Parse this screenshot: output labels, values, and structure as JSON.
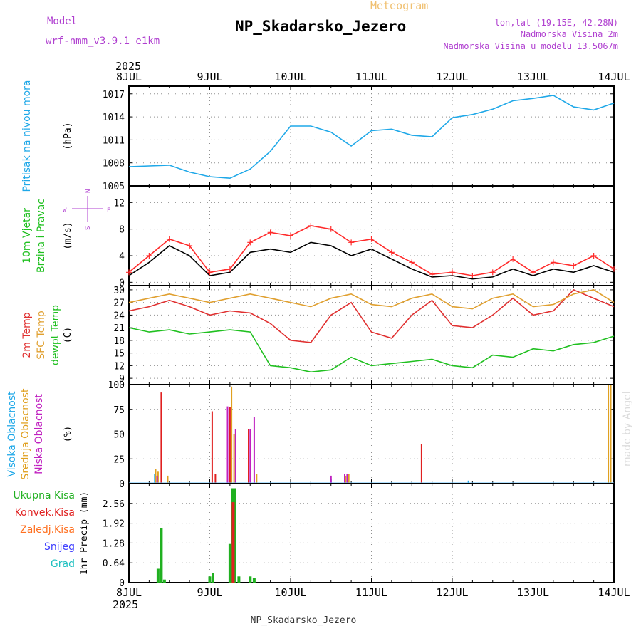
{
  "header": {
    "model_label": "Model",
    "model_name": "wrf-nmm_v3.9.1  e1km",
    "meteogram_label": "Meteogram",
    "station": "NP_Skadarsko_Jezero",
    "lonlat": "lon,lat (19.15E, 42.28N)",
    "elevation": "Nadmorska Visina 2m",
    "model_elevation": "Nadmorska Visina u modelu 13.5067m",
    "footer_station": "NP_Skadarsko_Jezero",
    "credit": "made by Angel"
  },
  "colors": {
    "pressure": "#1fa8e8",
    "wind_speed": "#000000",
    "gust": "#ff2a2a",
    "temp2m": "#e03030",
    "sfc_temp": "#e0a030",
    "dewpoint": "#20c020",
    "cloud_high": "#1fa8e8",
    "cloud_mid": "#e0a020",
    "cloud_low": "#c020c0",
    "cloud_total": "#e02020",
    "rain_total": "#20b020",
    "rain_conv": "#e02020",
    "rain_frozen": "#ff7020",
    "snow": "#4040ff",
    "graupel": "#20c0c0",
    "label_purple": "#b040d0",
    "label_orange": "#f0c070",
    "grid": "#909090"
  },
  "chart_data": [
    {
      "type": "line",
      "panel": "pressure",
      "ylabel_side": "Pritisak na nivou mora",
      "ylabel": "(hPa)",
      "year": "2025",
      "x_ticks": [
        "8JUL",
        "9JUL",
        "10JUL",
        "11JUL",
        "12JUL",
        "13JUL",
        "14JUL"
      ],
      "ylim": [
        1005,
        1018
      ],
      "yticks": [
        1005,
        1008,
        1011,
        1014,
        1017
      ],
      "x": [
        0,
        0.25,
        0.5,
        0.75,
        1.0,
        1.25,
        1.5,
        1.75,
        2.0,
        2.25,
        2.5,
        2.75,
        3.0,
        3.25,
        3.5,
        3.75,
        4.0,
        4.25,
        4.5,
        4.75,
        5.0,
        5.25,
        5.5,
        5.75,
        6.0
      ],
      "series": [
        {
          "values": [
            1007.5,
            1007.6,
            1007.7,
            1006.8,
            1006.2,
            1006.0,
            1007.2,
            1009.5,
            1012.8,
            1012.8,
            1012.0,
            1010.2,
            1012.2,
            1012.4,
            1011.6,
            1011.4,
            1013.9,
            1014.3,
            1015.0,
            1016.1,
            1016.4,
            1016.8,
            1015.3,
            1014.9,
            1015.8
          ]
        }
      ],
      "grid": true
    },
    {
      "type": "line",
      "panel": "wind",
      "ylabel_side": [
        "10m Vjetar",
        "Brzina i Pravac"
      ],
      "ylabel": "(m/s)",
      "compass": {
        "n": "N",
        "s": "S",
        "e": "E",
        "w": "W"
      },
      "ylim": [
        -0.5,
        14.5
      ],
      "yticks": [
        0,
        4,
        8,
        12
      ],
      "x": [
        0,
        0.25,
        0.5,
        0.75,
        1.0,
        1.25,
        1.5,
        1.75,
        2.0,
        2.25,
        2.5,
        2.75,
        3.0,
        3.25,
        3.5,
        3.75,
        4.0,
        4.25,
        4.5,
        4.75,
        5.0,
        5.25,
        5.5,
        5.75,
        6.0
      ],
      "series": [
        {
          "name": "speed",
          "values": [
            1.0,
            3.0,
            5.5,
            4.0,
            1.0,
            1.5,
            4.5,
            5.0,
            4.5,
            6.0,
            5.5,
            4.0,
            5.0,
            3.5,
            2.0,
            0.8,
            1.0,
            0.5,
            0.8,
            2.0,
            1.0,
            2.0,
            1.5,
            2.5,
            1.5
          ]
        },
        {
          "name": "gust",
          "values": [
            1.5,
            4.0,
            6.5,
            5.5,
            1.5,
            2.0,
            6.0,
            7.5,
            7.0,
            8.5,
            8.0,
            6.0,
            6.5,
            4.5,
            3.0,
            1.2,
            1.5,
            1.0,
            1.5,
            3.5,
            1.5,
            3.0,
            2.5,
            4.0,
            2.0
          ]
        }
      ],
      "grid": true
    },
    {
      "type": "line",
      "panel": "temperature",
      "ylabel_side": [
        "2m Temp",
        "SFC Temp",
        "dewpt Temp"
      ],
      "ylabel": "(C)",
      "ylim": [
        7.5,
        31
      ],
      "yticks": [
        9,
        12,
        15,
        18,
        21,
        24,
        27,
        30
      ],
      "x": [
        0,
        0.25,
        0.5,
        0.75,
        1.0,
        1.25,
        1.5,
        1.75,
        2.0,
        2.25,
        2.5,
        2.75,
        3.0,
        3.25,
        3.5,
        3.75,
        4.0,
        4.25,
        4.5,
        4.75,
        5.0,
        5.25,
        5.5,
        5.75,
        6.0
      ],
      "series": [
        {
          "name": "2m Temp",
          "values": [
            25,
            26,
            27.5,
            26,
            24,
            25,
            24.5,
            22,
            18,
            17.5,
            24,
            27,
            20,
            18.5,
            24,
            27.5,
            21.5,
            21,
            24,
            28,
            24,
            25,
            30,
            28,
            26
          ]
        },
        {
          "name": "SFC Temp",
          "values": [
            27,
            28,
            29,
            28,
            27,
            28,
            29,
            28,
            27,
            26,
            28,
            29,
            26.5,
            26,
            28,
            29,
            26,
            25.5,
            28,
            29,
            26,
            26.5,
            29,
            30,
            27
          ]
        },
        {
          "name": "dewpt Temp",
          "values": [
            21,
            20,
            20.5,
            19.5,
            20,
            20.5,
            20,
            12,
            11.5,
            10.5,
            11,
            14,
            12,
            12.5,
            13,
            13.5,
            12,
            11.5,
            14.5,
            14,
            16,
            15.5,
            17,
            17.5,
            19
          ]
        }
      ],
      "grid": true
    },
    {
      "type": "bar",
      "panel": "clouds",
      "ylabel_side": [
        "Visoka Oblacnost",
        "Srednja Oblacnost",
        "Niska Oblacnost"
      ],
      "ylabel": "(%)",
      "ylim": [
        0,
        100
      ],
      "yticks": [
        0,
        25,
        50,
        75,
        100
      ],
      "series": [
        {
          "name": "high",
          "bars": [
            [
              0.32,
              10
            ],
            [
              2.5,
              5
            ],
            [
              4.2,
              3
            ]
          ]
        },
        {
          "name": "mid",
          "bars": [
            [
              0.33,
              15
            ],
            [
              0.36,
              12
            ],
            [
              0.48,
              8
            ],
            [
              1.27,
              98
            ],
            [
              1.3,
              50
            ],
            [
              1.58,
              10
            ],
            [
              2.68,
              8
            ],
            [
              2.72,
              10
            ],
            [
              5.93,
              100
            ],
            [
              5.96,
              100
            ]
          ]
        },
        {
          "name": "low",
          "bars": [
            [
              0.35,
              8
            ],
            [
              1.22,
              78
            ],
            [
              1.32,
              55
            ],
            [
              1.5,
              55
            ],
            [
              1.55,
              67
            ],
            [
              2.5,
              8
            ],
            [
              2.67,
              10
            ],
            [
              2.7,
              10
            ]
          ]
        },
        {
          "name": "total",
          "bars": [
            [
              0.4,
              92
            ],
            [
              1.03,
              73
            ],
            [
              1.07,
              10
            ],
            [
              1.25,
              77
            ],
            [
              1.48,
              55
            ],
            [
              3.62,
              40
            ]
          ]
        }
      ],
      "grid": true
    },
    {
      "type": "bar",
      "panel": "precip",
      "ylabel_side": [
        "Ukupna Kisa",
        "Konvek.Kisa",
        "Zaledj.Kisa",
        "Snijeg",
        "Grad"
      ],
      "ylabel": "1hr Precip (mm)",
      "ylim": [
        0,
        3.2
      ],
      "yticks": [
        0,
        0.64,
        1.28,
        1.92,
        2.56
      ],
      "series": [
        {
          "name": "total",
          "bars": [
            [
              0.36,
              0.45
            ],
            [
              0.4,
              1.75
            ],
            [
              0.44,
              0.1
            ],
            [
              1.0,
              0.2
            ],
            [
              1.04,
              0.3
            ],
            [
              1.25,
              1.25
            ],
            [
              1.28,
              3.05
            ],
            [
              1.31,
              3.05
            ],
            [
              1.36,
              0.2
            ],
            [
              1.5,
              0.2
            ],
            [
              1.55,
              0.15
            ]
          ]
        },
        {
          "name": "conv",
          "bars": [
            [
              1.29,
              2.6
            ]
          ]
        }
      ],
      "grid": true
    }
  ]
}
